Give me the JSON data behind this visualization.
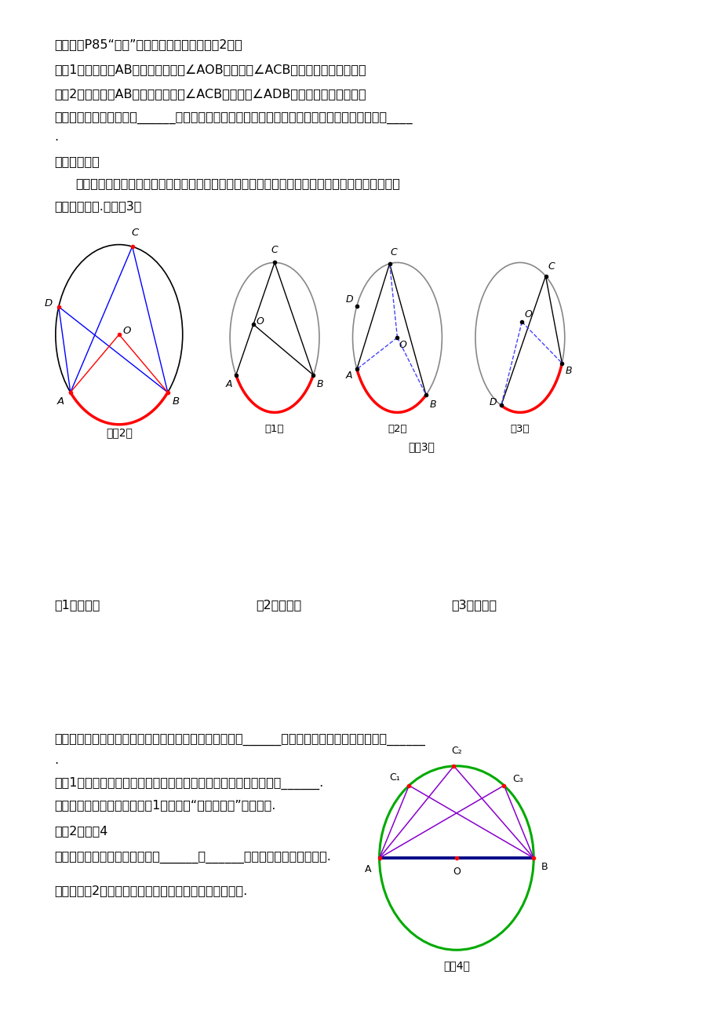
{
  "bg_color": "#ffffff",
  "text_color": "#000000",
  "fig_width": 9.2,
  "fig_height": 13.02,
  "line1": "阅读教材P85“探究”内容，动手量一量（如图2）：",
  "line2": "问题1：同弧（弧AB）所对的圆心角∠AOB与圆周角∠ACB的大小关系是怎样的？",
  "line3": "问题2：同弧（弧AB）所对的圆周角∠ACB与圆周角∠ADB的大小关系是怎样的？",
  "line4": "猜想：同弧所对的圆周角______，并且同弧所对的圆周角恰好等于这条弧所对的圆心角的度数的____",
  "line5": ".",
  "line6": "请完成证明：",
  "line7": "实际上，圆心与圆周角存在三种位置关系：圆心在圆周角的一边上；圆心在圆周角的内部；圆心在",
  "line8": "圆周角的外部.（如图3）",
  "proof1": "（1）证明：",
  "proof2": "（2）证明：",
  "proof3": "（3）证明：",
  "thm1": "圆周角定理：在同圆或等圆中，同弧或等弧所对的圆周角______，都等于这条弧所对的圆心角的______",
  "thm2": ".",
  "thm3": "推论1：在同圆或等圆中，如果两个圆周角相等，它们所对的弧一定______.",
  "thm4": "说明：注意圆周角定理及推论1不能丢掉“同圆或等圆”这个前提.",
  "thm5": "推论2：如图4",
  "thm6": "半圆（或直径）所对的圆周角是______；______的圆周角所对的弦是直径.",
  "thm7": "说明：推论2为在圆中确定直角、成垂直关系创造了条件.",
  "fig3_label": "（图3）",
  "fig4_label": "（图4）",
  "fig2_label": "（图2）",
  "sub1_label": "（1）",
  "sub2_label": "（2）",
  "sub3_label": "（3）"
}
